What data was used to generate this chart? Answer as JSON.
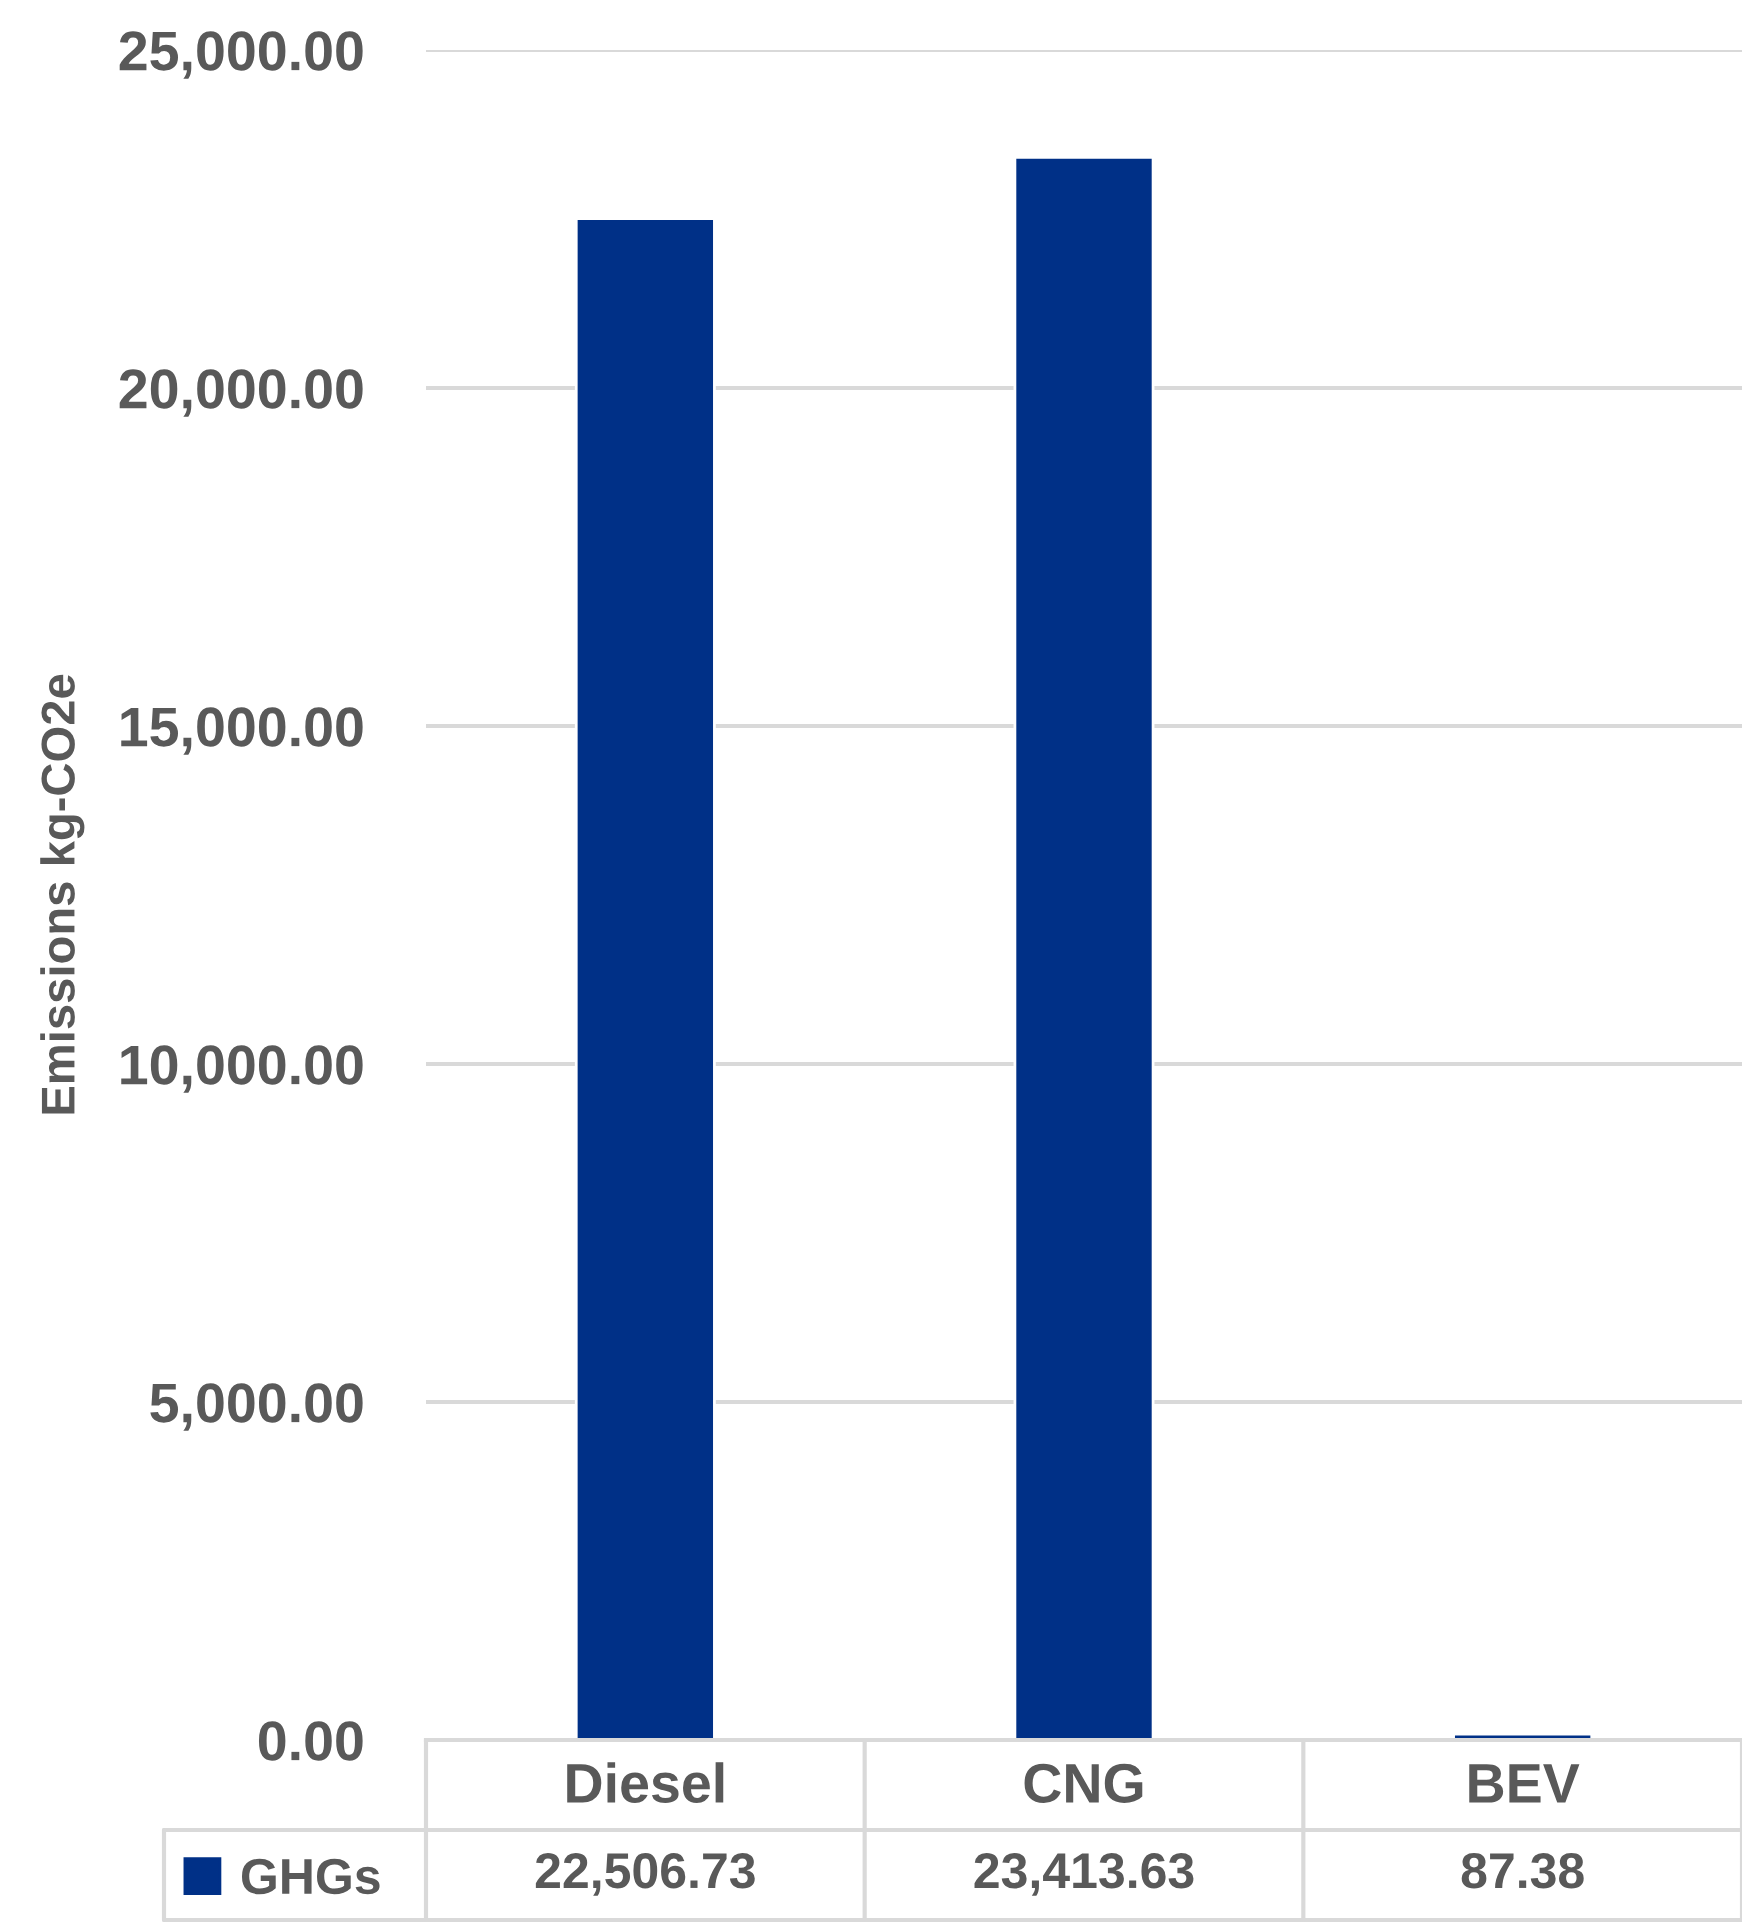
{
  "chart_data": {
    "type": "bar",
    "ylabel": "Emissions kg-CO2e",
    "categories": [
      "Diesel",
      "CNG",
      "BEV"
    ],
    "series": [
      {
        "name": "GHGs",
        "color": "#003087",
        "values": [
          22506.73,
          23413.63,
          87.38
        ],
        "value_labels": [
          "22,506.73",
          "23,413.63",
          "87.38"
        ]
      }
    ],
    "ylim": [
      0,
      25000
    ],
    "yticks": [
      {
        "value": 0,
        "label": "0.00"
      },
      {
        "value": 5000,
        "label": "5,000.00"
      },
      {
        "value": 10000,
        "label": "10,000.00"
      },
      {
        "value": 15000,
        "label": "15,000.00"
      },
      {
        "value": 20000,
        "label": "20,000.00"
      },
      {
        "value": 25000,
        "label": "25,000.00"
      }
    ],
    "grid": "y",
    "legend": "bottom left"
  }
}
